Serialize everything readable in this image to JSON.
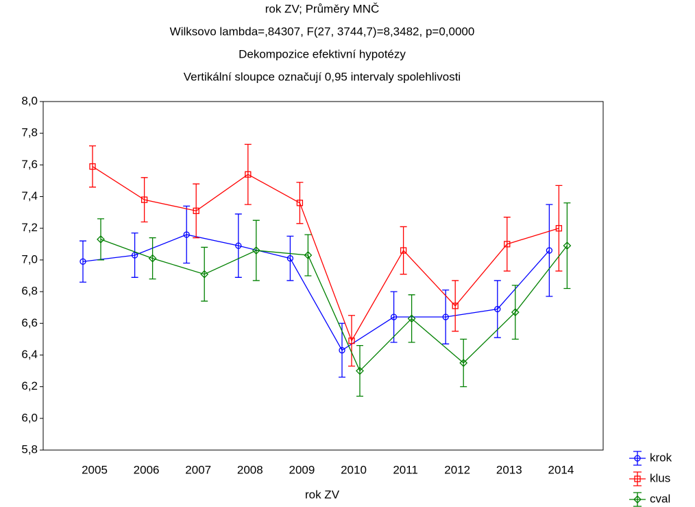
{
  "chart_data": {
    "type": "line-errorbar",
    "title_lines": [
      "rok ZV; Průměry MNČ",
      "Wilksovo lambda=,84307, F(27, 3744,7)=8,3482, p=0,0000",
      "Dekompozice efektivní hypotézy",
      "Vertikální sloupce označují 0,95 intervaly spolehlivosti"
    ],
    "x_label": "rok ZV",
    "categories": [
      "2005",
      "2006",
      "2007",
      "2008",
      "2009",
      "2010",
      "2011",
      "2012",
      "2013",
      "2014"
    ],
    "series": [
      {
        "name": "krok",
        "color": "#0000ff",
        "marker": "circle",
        "values": [
          6.99,
          7.03,
          7.16,
          7.09,
          7.01,
          6.43,
          6.64,
          6.64,
          6.69,
          7.06
        ],
        "errors": [
          0.13,
          0.14,
          0.18,
          0.2,
          0.14,
          0.17,
          0.16,
          0.17,
          0.18,
          0.29
        ]
      },
      {
        "name": "klus",
        "color": "#ff0000",
        "marker": "square",
        "values": [
          7.59,
          7.38,
          7.31,
          7.54,
          7.36,
          6.49,
          7.06,
          6.71,
          7.1,
          7.2
        ],
        "errors": [
          0.13,
          0.14,
          0.17,
          0.19,
          0.13,
          0.16,
          0.15,
          0.16,
          0.17,
          0.27
        ]
      },
      {
        "name": "cval",
        "color": "#008000",
        "marker": "diamond",
        "values": [
          7.13,
          7.01,
          6.91,
          7.06,
          7.03,
          6.3,
          6.63,
          6.35,
          6.67,
          7.09
        ],
        "errors": [
          0.13,
          0.13,
          0.17,
          0.19,
          0.13,
          0.16,
          0.15,
          0.15,
          0.17,
          0.27
        ]
      }
    ],
    "ylim": [
      5.8,
      8.0
    ],
    "yticks": [
      {
        "value": 5.8,
        "label": "5,8"
      },
      {
        "value": 6.0,
        "label": "6,0"
      },
      {
        "value": 6.2,
        "label": "6,2"
      },
      {
        "value": 6.4,
        "label": "6,4"
      },
      {
        "value": 6.6,
        "label": "6,6"
      },
      {
        "value": 6.8,
        "label": "6,8"
      },
      {
        "value": 7.0,
        "label": "7,0"
      },
      {
        "value": 7.2,
        "label": "7,2"
      },
      {
        "value": 7.4,
        "label": "7,4"
      },
      {
        "value": 7.6,
        "label": "7,6"
      },
      {
        "value": 7.8,
        "label": "7,8"
      },
      {
        "value": 8.0,
        "label": "8,0"
      }
    ],
    "grid": false,
    "legend": "bottom-right"
  }
}
